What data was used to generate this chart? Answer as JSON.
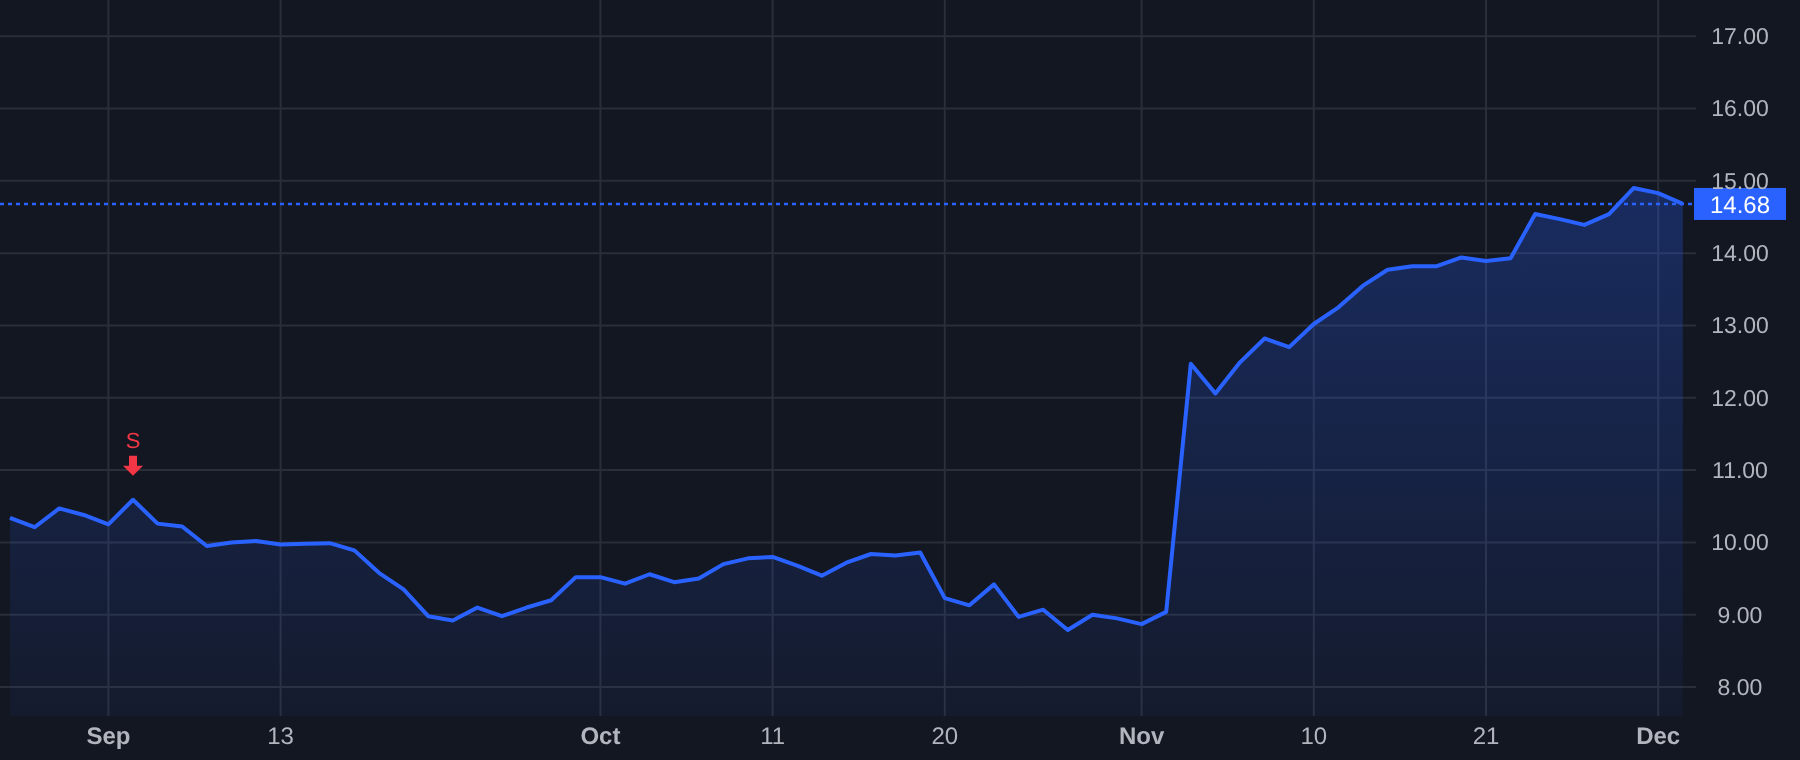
{
  "chart_data": {
    "type": "area",
    "categories": [
      null,
      null,
      null,
      null,
      "Sep",
      null,
      null,
      null,
      null,
      null,
      null,
      "13",
      null,
      null,
      null,
      null,
      null,
      null,
      null,
      null,
      null,
      null,
      null,
      null,
      "Oct",
      null,
      null,
      null,
      null,
      null,
      null,
      "11",
      null,
      null,
      null,
      null,
      null,
      null,
      "20",
      null,
      null,
      null,
      null,
      null,
      null,
      null,
      "Nov",
      null,
      null,
      null,
      null,
      null,
      null,
      "10",
      null,
      null,
      null,
      null,
      null,
      null,
      "21",
      null,
      null,
      null,
      null,
      null,
      null,
      "Dec",
      null
    ],
    "series": [
      {
        "color": "#2962ff",
        "values": [
          10.34,
          10.21,
          10.47,
          10.38,
          10.25,
          10.59,
          10.26,
          10.22,
          9.95,
          10.0,
          10.02,
          9.97,
          9.98,
          9.99,
          9.89,
          9.58,
          9.35,
          8.98,
          8.92,
          9.1,
          8.98,
          9.1,
          9.2,
          9.52,
          9.52,
          9.43,
          9.56,
          9.45,
          9.5,
          9.7,
          9.78,
          9.8,
          9.68,
          9.54,
          9.72,
          9.84,
          9.82,
          9.86,
          9.23,
          9.13,
          9.42,
          8.97,
          9.07,
          8.79,
          9.0,
          8.95,
          8.87,
          9.04,
          12.47,
          12.06,
          12.49,
          12.82,
          12.7,
          13.02,
          13.25,
          13.55,
          13.77,
          13.82,
          13.82,
          13.94,
          13.89,
          13.93,
          14.54,
          14.47,
          14.39,
          14.54,
          14.9,
          14.83,
          14.68
        ]
      }
    ],
    "ylim": [
      7.6,
      17.5
    ],
    "yticks": [
      {
        "value": 8,
        "label": "8.00"
      },
      {
        "value": 9,
        "label": "9.00"
      },
      {
        "value": 10,
        "label": "10.00"
      },
      {
        "value": 11,
        "label": "11.00"
      },
      {
        "value": 12,
        "label": "12.00"
      },
      {
        "value": 13,
        "label": "13.00"
      },
      {
        "value": 14,
        "label": "14.00"
      },
      {
        "value": 15,
        "label": "15.00"
      },
      {
        "value": 16,
        "label": "16.00"
      },
      {
        "value": 17,
        "label": "17.00"
      }
    ],
    "ref_lines": [
      {
        "axis": "y",
        "value": 14.68,
        "label": "14.68",
        "color": "#2962ff",
        "line_style": "dotted"
      }
    ],
    "annotations": [
      {
        "text": "S",
        "y": 10.59
      }
    ],
    "grid": true,
    "marker": "none",
    "line_style": "solid"
  }
}
